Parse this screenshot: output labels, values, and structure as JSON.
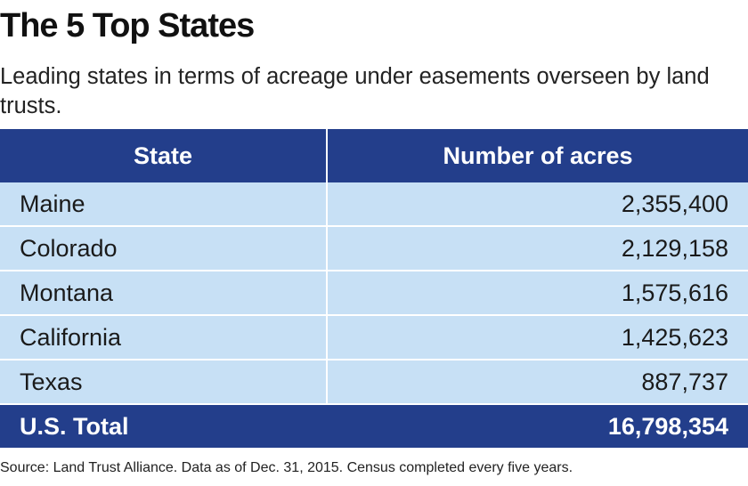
{
  "title": "The 5 Top States",
  "subtitle": "Leading states in terms of acreage under easements overseen by land trusts.",
  "source": "Source: Land Trust Alliance. Data as of Dec. 31, 2015. Census completed every five years.",
  "colors": {
    "header_bg": "#233e8b",
    "row_bg": "#c7e0f5",
    "header_text": "#ffffff"
  },
  "chart_data": {
    "type": "table",
    "columns": [
      "State",
      "Number of acres"
    ],
    "rows": [
      [
        "Maine",
        "2,355,400"
      ],
      [
        "Colorado",
        "2,129,158"
      ],
      [
        "Montana",
        "1,575,616"
      ],
      [
        "California",
        "1,425,623"
      ],
      [
        "Texas",
        "887,737"
      ]
    ],
    "values": [
      2355400,
      2129158,
      1575616,
      1425623,
      887737
    ],
    "total": {
      "label": "U.S. Total",
      "value": "16,798,354"
    }
  }
}
